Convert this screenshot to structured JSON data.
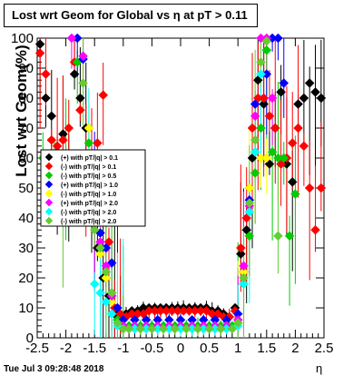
{
  "title": "Lost wrt Geom for Global vs  η at pT > 0.11",
  "footer": "Tue Jul  3 09:28:48 2018",
  "chart_data": {
    "type": "scatter",
    "title": "Lost wrt Geom for Global vs  η at pT > 0.11",
    "xlabel": "η",
    "ylabel": "Lost wrt Geom(%)",
    "xlim": [
      -2.5,
      2.5
    ],
    "ylim": [
      0,
      100
    ],
    "xticks": [
      -2.5,
      -2,
      -1.5,
      -1,
      -0.5,
      0,
      0.5,
      1,
      1.5,
      2,
      2.5
    ],
    "yticks": [
      0,
      10,
      20,
      30,
      40,
      50,
      60,
      70,
      80,
      90,
      100
    ],
    "grid": false,
    "legend_position": "center-left",
    "series": [
      {
        "name": "(+) with pT/|q| > 0.1",
        "color": "#000000",
        "x": [
          -2.45,
          -2.35,
          -2.25,
          -2.15,
          -2.05,
          -1.95,
          -1.85,
          -1.75,
          -1.65,
          -1.55,
          -1.45,
          -1.35,
          -1.25,
          -1.15,
          -1.05,
          -0.95,
          -0.85,
          -0.75,
          -0.65,
          -0.55,
          -0.45,
          -0.35,
          -0.25,
          -0.15,
          -0.05,
          0.05,
          0.15,
          0.25,
          0.35,
          0.45,
          0.55,
          0.65,
          0.75,
          0.85,
          0.95,
          1.05,
          1.15,
          1.25,
          1.35,
          1.45,
          1.55,
          1.65,
          1.75,
          1.85,
          1.95,
          2.05,
          2.15,
          2.25,
          2.35,
          2.45
        ],
        "y": [
          98,
          80,
          74,
          62,
          68,
          57,
          88,
          80,
          70,
          45,
          30,
          20,
          14,
          8,
          6,
          8,
          9,
          9,
          10,
          10,
          10,
          10,
          10,
          10,
          10,
          10,
          10,
          10,
          10,
          10,
          9,
          9,
          8,
          7,
          10,
          28,
          36,
          60,
          86,
          78,
          58,
          70,
          82,
          58,
          52,
          78,
          80,
          85,
          82,
          80
        ]
      },
      {
        "name": "(-) with pT/|q| > 0.1",
        "color": "#ff0000",
        "x": [
          -2.45,
          -2.35,
          -2.25,
          -2.15,
          -2.05,
          -1.95,
          -1.85,
          -1.75,
          -1.65,
          -1.55,
          -1.45,
          -1.35,
          -1.25,
          -1.15,
          -1.05,
          -0.95,
          -0.85,
          -0.75,
          -0.65,
          -0.55,
          -0.45,
          -0.35,
          -0.25,
          -0.15,
          -0.05,
          0.05,
          0.15,
          0.25,
          0.35,
          0.45,
          0.55,
          0.65,
          0.75,
          0.85,
          0.95,
          1.05,
          1.15,
          1.25,
          1.35,
          1.45,
          1.55,
          1.65,
          1.75,
          1.85,
          1.95,
          2.05,
          2.15,
          2.25,
          2.35,
          2.45
        ],
        "y": [
          95,
          88,
          66,
          64,
          66,
          70,
          92,
          76,
          60,
          50,
          65,
          81,
          32,
          10,
          8,
          7,
          8,
          8,
          8,
          9,
          9,
          9,
          9,
          9,
          9,
          9,
          9,
          9,
          9,
          9,
          8,
          8,
          7,
          7,
          9,
          30,
          40,
          70,
          80,
          80,
          74,
          70,
          58,
          60,
          65,
          70,
          64,
          50,
          36,
          50
        ]
      },
      {
        "name": "(-) with pT/|q| > 0.5",
        "color": "#00cc00",
        "x": [
          -2.4,
          -2.2,
          -2.0,
          -1.8,
          -1.6,
          -1.5,
          -1.4,
          -1.3,
          -1.2,
          -1.1,
          -1.0,
          -0.9,
          -0.7,
          -0.5,
          -0.3,
          -0.1,
          0.1,
          0.3,
          0.5,
          0.7,
          0.9,
          1.0,
          1.1,
          1.2,
          1.3,
          1.4,
          1.5,
          1.6,
          1.7,
          1.8,
          1.9,
          2.0
        ],
        "y": [
          60,
          55,
          50,
          92,
          65,
          40,
          30,
          20,
          15,
          6,
          3,
          4,
          4,
          4,
          4,
          4,
          4,
          4,
          4,
          4,
          4,
          5,
          18,
          34,
          55,
          70,
          96,
          62,
          60,
          60,
          34,
          48
        ]
      },
      {
        "name": "(+) with pT/|q| > 1.0",
        "color": "#0000ff",
        "x": [
          -1.8,
          -1.7,
          -1.5,
          -1.4,
          -1.3,
          -1.2,
          -1.1,
          -1.0,
          -0.8,
          -0.6,
          -0.4,
          -0.2,
          0.0,
          0.2,
          0.4,
          0.6,
          0.8,
          1.0,
          1.1,
          1.2,
          1.3,
          1.4,
          1.5,
          1.6,
          1.7,
          1.8
        ],
        "y": [
          100,
          93,
          40,
          35,
          30,
          25,
          10,
          6,
          6,
          6,
          6,
          6,
          6,
          6,
          6,
          6,
          6,
          8,
          22,
          46,
          78,
          100,
          88,
          100,
          100,
          85
        ]
      },
      {
        "name": "(-) with pT/|q| > 1.0",
        "color": "#ffff00",
        "x": [
          -1.6,
          -1.5,
          -1.4,
          -1.3,
          -1.2,
          -1.1,
          -1.0,
          -0.8,
          -0.6,
          -0.4,
          -0.2,
          0.0,
          0.2,
          0.4,
          0.6,
          0.8,
          1.0,
          1.1,
          1.2,
          1.3,
          1.4,
          1.5
        ],
        "y": [
          70,
          40,
          28,
          20,
          12,
          5,
          4,
          4,
          4,
          4,
          4,
          4,
          4,
          4,
          4,
          4,
          5,
          22,
          50,
          62,
          60,
          60
        ]
      },
      {
        "name": "(+) with pT/|q| > 2.0",
        "color": "#ff00ff",
        "x": [
          -1.9,
          -1.7,
          -1.5,
          -1.4,
          -1.3,
          -1.2,
          -1.1,
          -1.0,
          -0.8,
          -0.6,
          -0.4,
          -0.2,
          0.0,
          0.2,
          0.4,
          0.6,
          0.8,
          1.0,
          1.1,
          1.2,
          1.3,
          1.4,
          1.5,
          1.6
        ],
        "y": [
          100,
          94,
          45,
          32,
          24,
          14,
          5,
          4,
          4,
          4,
          4,
          4,
          4,
          4,
          4,
          4,
          4,
          6,
          24,
          44,
          74,
          100,
          100,
          80
        ]
      },
      {
        "name": "(-) with pT/|q| > 2.0",
        "color": "#00ffff",
        "x": [
          -1.6,
          -1.5,
          -1.4,
          -1.3,
          -1.2,
          -1.1,
          -1.0,
          -0.8,
          -0.6,
          -0.4,
          -0.2,
          0.0,
          0.2,
          0.4,
          0.6,
          0.8,
          1.0,
          1.1,
          1.2,
          1.3,
          1.4
        ],
        "y": [
          60,
          18,
          15,
          12,
          8,
          4,
          3,
          3,
          3,
          3,
          3,
          3,
          3,
          3,
          3,
          3,
          4,
          18,
          42,
          62,
          88
        ]
      },
      {
        "name": "(-) with pT/|q| > 2.0",
        "color": "#66cc33",
        "x": [
          -2.05,
          -1.7,
          -1.5,
          -1.4,
          -1.3,
          -1.2,
          -1.1,
          -1.0,
          -0.9,
          -0.7,
          -0.5,
          -0.3,
          -0.1,
          0.1,
          0.3,
          0.5,
          0.7,
          0.9,
          1.0,
          1.1,
          1.2,
          1.3,
          1.4,
          1.5,
          1.7
        ],
        "y": [
          40,
          85,
          36,
          30,
          22,
          15,
          5,
          3,
          3,
          3,
          3,
          3,
          3,
          3,
          3,
          3,
          3,
          3,
          5,
          20,
          45,
          66,
          92,
          99,
          34
        ]
      }
    ]
  }
}
